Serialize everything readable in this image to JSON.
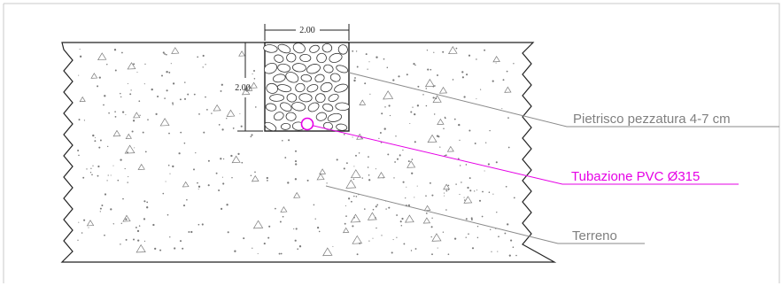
{
  "drawing": {
    "dimension_width": "2.00",
    "dimension_height": "2.00",
    "labels": {
      "gravel": "Pietrisco pezzatura 4-7 cm",
      "pipe": "Tubazione PVC Ø315",
      "soil": "Terreno"
    },
    "colors": {
      "border": "#c8c8c8",
      "outline": "#222222",
      "leader_gray": "#8a8a8a",
      "label_gray": "#808080",
      "pipe_magenta": "#e600e6",
      "speckle": "#7a7a7a"
    }
  }
}
